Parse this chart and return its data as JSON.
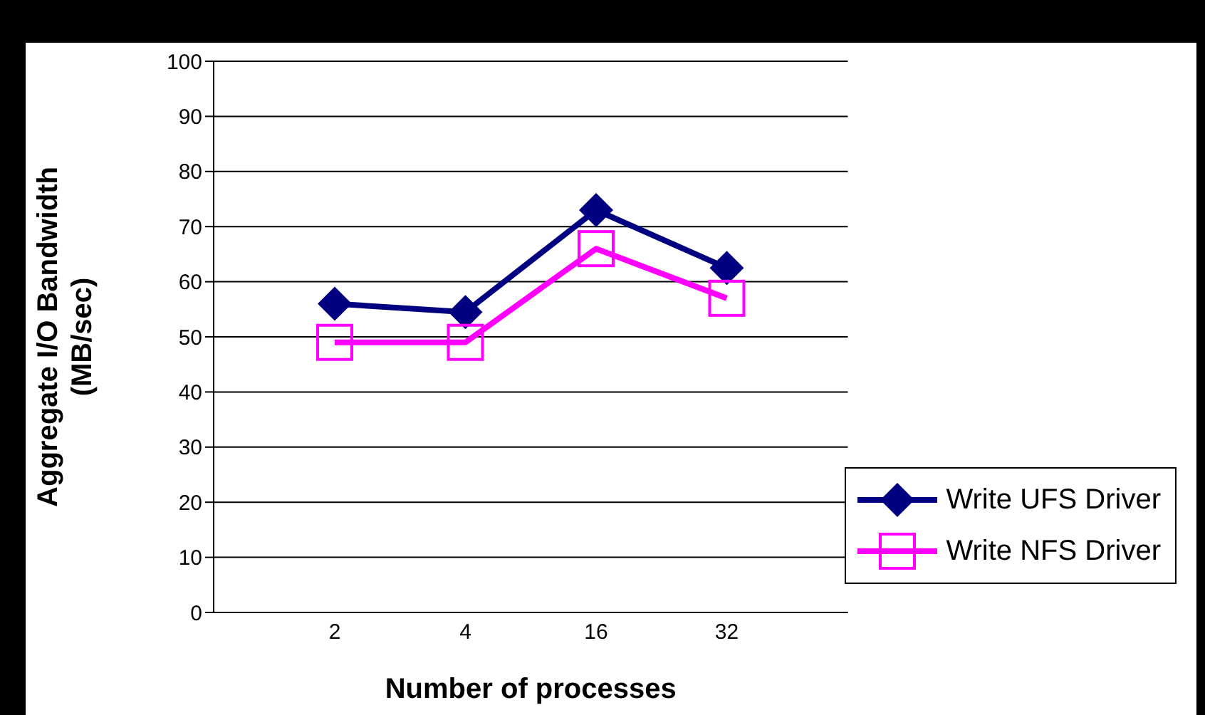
{
  "chart_data": {
    "type": "line",
    "xlabel": "Number of processes",
    "ylabel": "Aggregate I/O Bandwidth (MB/sec)",
    "categories": [
      "2",
      "4",
      "16",
      "32"
    ],
    "series": [
      {
        "name": "Write UFS Driver",
        "color": "#000080",
        "marker": "diamond",
        "values": [
          56,
          54.5,
          73,
          62.5
        ]
      },
      {
        "name": "Write NFS Driver",
        "color": "#ff00ff",
        "marker": "square",
        "values": [
          49,
          49,
          66,
          57
        ]
      }
    ],
    "ylim": [
      0,
      100
    ],
    "yticks": [
      0,
      10,
      20,
      30,
      40,
      50,
      60,
      70,
      80,
      90,
      100
    ],
    "grid": "y",
    "legend": "bottom right",
    "line_style": "solid"
  }
}
